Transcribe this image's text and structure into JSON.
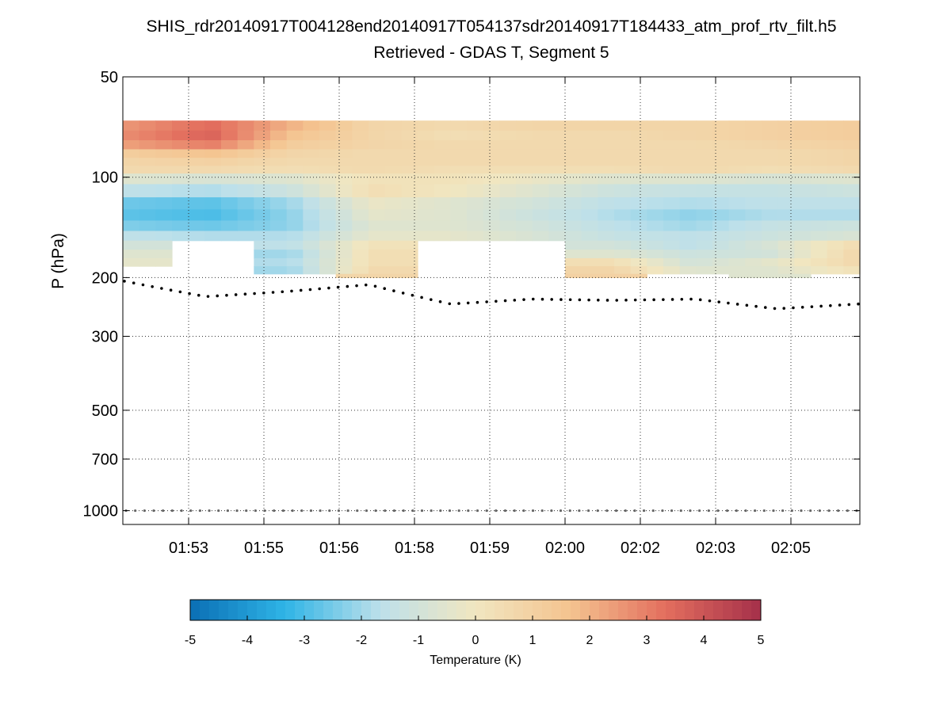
{
  "chart_data": {
    "type": "heatmap",
    "title": "SHIS_rdr20140917T004128end20140917T054137sdr20140917T184433_atm_prof_rtv_filt.h5",
    "subtitle": "Retrieved - GDAS T, Segment 5",
    "ylabel": "P (hPa)",
    "y_scale": "log",
    "y_direction": "inverted",
    "ylim": [
      50,
      1100
    ],
    "y_ticks": [
      50,
      100,
      200,
      300,
      500,
      700,
      1000
    ],
    "x_tick_labels": [
      "01:53",
      "01:55",
      "01:56",
      "01:58",
      "01:59",
      "02:00",
      "02:02",
      "02:03",
      "02:05"
    ],
    "grid": true,
    "grid_style": "dotted",
    "colorbar": {
      "label": "Temperature (K)",
      "min": -5,
      "max": 5,
      "ticks": [
        -5,
        -4,
        -3,
        -2,
        -1,
        0,
        1,
        2,
        3,
        4,
        5
      ],
      "colormap": "blue-white-red (RdYlBu reversed)",
      "colors": [
        "#0a6fb5",
        "#2fb4e6",
        "#bde0ea",
        "#f1e6c0",
        "#f4c38f",
        "#e36e5e",
        "#a5304a"
      ],
      "placement": "bottom"
    },
    "pressure_levels_hpa": [
      70,
      75,
      80,
      85,
      90,
      95,
      100,
      110,
      120,
      130,
      140,
      150,
      160,
      170,
      180,
      190,
      200
    ],
    "columns": 45,
    "difference_profiles": [
      {
        "x_label_near": "01:52",
        "values_by_level": [
          2.6,
          2.8,
          2.4,
          1.2,
          0.8,
          0.6,
          -0.6,
          -1.6,
          -2.6,
          -2.8,
          -2.4,
          -1.6,
          -1.0,
          -0.6,
          -0.4,
          null,
          null
        ]
      },
      {
        "x_label_near": "01:53",
        "values_by_level": [
          3.4,
          3.6,
          3.0,
          1.6,
          1.0,
          0.6,
          -0.8,
          -1.8,
          -2.8,
          -3.0,
          -2.6,
          -1.8,
          null,
          null,
          null,
          null,
          null
        ]
      },
      {
        "x_label_near": "01:55",
        "values_by_level": [
          2.0,
          1.6,
          1.2,
          0.8,
          0.6,
          0.4,
          -0.6,
          -1.2,
          -2.0,
          -2.2,
          -2.2,
          -1.8,
          -1.6,
          -2.0,
          -1.8,
          -2.0,
          null
        ]
      },
      {
        "x_label_near": "01:56",
        "values_by_level": [
          0.8,
          0.8,
          0.8,
          0.6,
          0.6,
          0.6,
          0.2,
          0.4,
          -0.2,
          -0.4,
          -0.6,
          -0.4,
          0.2,
          0.4,
          0.4,
          0.6,
          0.8
        ]
      },
      {
        "x_label_near": "01:58",
        "values_by_level": [
          0.6,
          0.4,
          0.6,
          0.6,
          0.6,
          0.4,
          0.2,
          0.0,
          -0.6,
          -0.6,
          -0.6,
          -0.4,
          null,
          null,
          null,
          null,
          null
        ]
      },
      {
        "x_label_near": "01:59",
        "values_by_level": [
          0.8,
          0.6,
          0.6,
          0.6,
          0.6,
          0.4,
          -0.2,
          -0.6,
          -1.0,
          -1.2,
          -1.0,
          -0.8,
          null,
          null,
          null,
          null,
          null
        ]
      },
      {
        "x_label_near": "02:00",
        "values_by_level": [
          0.8,
          0.6,
          0.6,
          0.6,
          0.6,
          0.4,
          -0.6,
          -1.2,
          -1.6,
          -1.8,
          -1.6,
          -1.4,
          -1.0,
          -0.6,
          0.4,
          0.8,
          1.0
        ]
      },
      {
        "x_label_near": "02:02",
        "values_by_level": [
          0.8,
          0.8,
          0.6,
          0.6,
          0.6,
          0.6,
          -0.6,
          -1.4,
          -1.8,
          -2.2,
          -2.0,
          -1.6,
          -1.6,
          -1.2,
          -1.0,
          -0.6,
          null
        ]
      },
      {
        "x_label_near": "02:03",
        "values_by_level": [
          1.0,
          1.0,
          0.8,
          0.6,
          0.6,
          0.4,
          -0.8,
          -1.4,
          -1.6,
          -1.8,
          -1.4,
          -1.2,
          -0.8,
          -1.0,
          -0.4,
          -0.6,
          -0.6
        ]
      },
      {
        "x_label_near": "02:05",
        "values_by_level": [
          1.2,
          1.2,
          1.0,
          0.8,
          0.8,
          0.6,
          -0.6,
          -1.2,
          -1.6,
          -1.8,
          -1.2,
          -0.8,
          0.4,
          0.6,
          0.6,
          0.2,
          null
        ]
      }
    ],
    "surface_pressure_hpa": 1000,
    "cloud_top_pressure_hpa": [
      {
        "x_label_near": "01:52",
        "value": 205
      },
      {
        "x_label_near": "01:53",
        "value": 228
      },
      {
        "x_label_near": "01:55",
        "value": 220
      },
      {
        "x_label_near": "01:56",
        "value": 210
      },
      {
        "x_label_near": "01:58",
        "value": 240
      },
      {
        "x_label_near": "01:59",
        "value": 232
      },
      {
        "x_label_near": "02:00",
        "value": 234
      },
      {
        "x_label_near": "02:02",
        "value": 232
      },
      {
        "x_label_near": "02:03",
        "value": 248
      },
      {
        "x_label_near": "02:05",
        "value": 240
      }
    ]
  }
}
